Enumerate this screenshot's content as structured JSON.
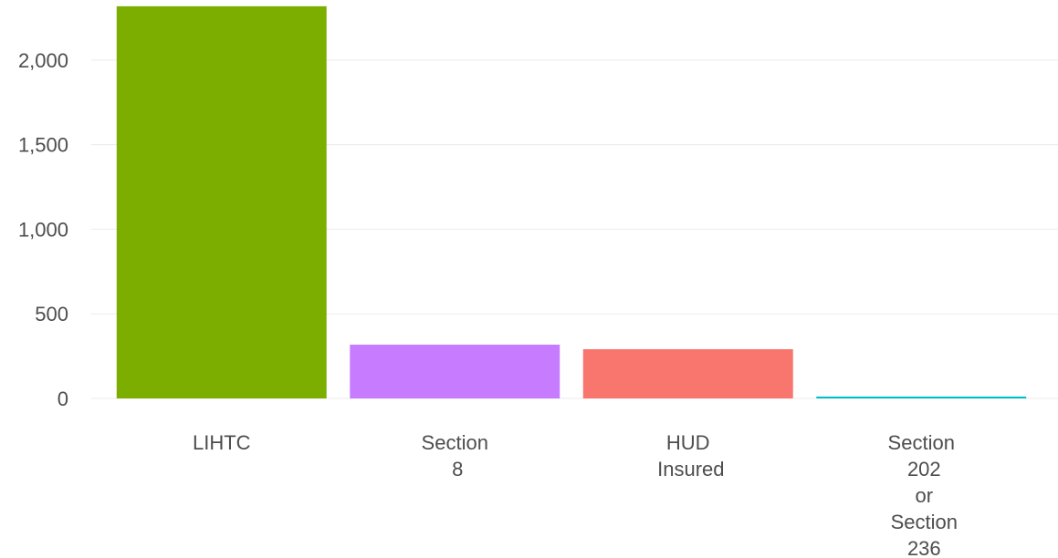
{
  "chart_data": {
    "type": "bar",
    "categories": [
      "LIHTC",
      "Section 8",
      "HUD Insured",
      "Section 202 or Section 236"
    ],
    "values": [
      2318,
      318,
      291,
      11
    ],
    "colors": [
      "#7CAE00",
      "#C77CFF",
      "#F8766D",
      "#00BFC4"
    ],
    "ylim": [
      0,
      2355
    ],
    "yticks": [
      0,
      {
        "value": 500,
        "label": "500"
      },
      {
        "value": 1000,
        "label": "1,000"
      },
      {
        "value": 1500,
        "label": "1,500"
      },
      {
        "value": 2000,
        "label": "2,000"
      }
    ],
    "grid": true
  }
}
